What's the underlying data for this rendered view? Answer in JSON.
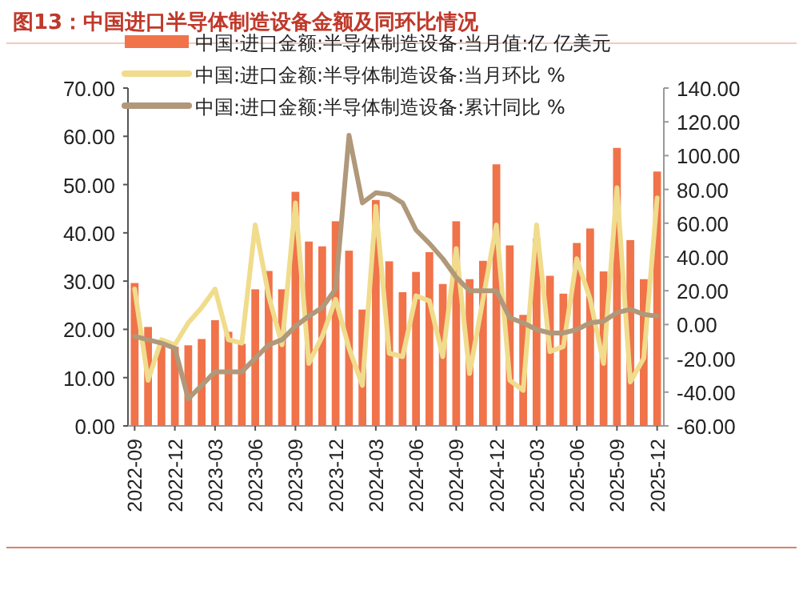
{
  "chart_data": {
    "type": "bar",
    "title": "图13：中国进口半导体制造设备金额及同环比情况",
    "categories": [
      "2022-09",
      null,
      null,
      "2022-12",
      null,
      null,
      "2023-03",
      null,
      null,
      "2023-06",
      null,
      null,
      "2023-09",
      null,
      null,
      "2023-12",
      null,
      null,
      "2024-03",
      null,
      null,
      "2024-06",
      null,
      null,
      "2024-09",
      null,
      null,
      "2024-12",
      null,
      null,
      "2025-03",
      null,
      null,
      "2025-06",
      null,
      null,
      "2025-09",
      null,
      null,
      "2025-12"
    ],
    "series": [
      {
        "name": "中国:进口金额:半导体制造设备:当月值:亿 亿美元",
        "color": "#f0734a",
        "values": [
          29.6,
          20.5,
          17,
          16.4,
          16.7,
          18,
          21.9,
          19.5,
          17,
          28.3,
          32.1,
          28.3,
          48.5,
          38.2,
          37.2,
          42.4,
          36.3,
          24.1,
          46.8,
          34.1,
          27.7,
          31.9,
          36,
          29.4,
          42.4,
          30.4,
          34.2,
          54.2,
          37.4,
          23,
          38.8,
          31.1,
          27.4,
          37.9,
          40.9,
          32,
          57.6,
          38.5,
          30.4,
          52.7
        ]
      },
      {
        "name": "中国:进口金额:半导体制造设备:当月环比 %",
        "type": "line",
        "axis": "y2",
        "color": "#f0dc8c",
        "values": [
          21,
          -33,
          -9,
          -12,
          1,
          10,
          21,
          -9,
          -11,
          59,
          17,
          -12,
          72,
          -23,
          -7,
          15,
          -14,
          -36,
          70,
          -17,
          -19,
          17,
          14,
          -19,
          45,
          -29,
          15,
          59,
          -33,
          -39,
          59,
          -16,
          -13,
          39,
          15,
          -23,
          81,
          -34,
          -20,
          75
        ]
      },
      {
        "name": "中国:进口金额:半导体制造设备:累计同比 %",
        "type": "line",
        "axis": "y2",
        "color": "#b0987a",
        "values": [
          -7,
          -9,
          -11,
          -14,
          -44,
          -36,
          -28,
          -28,
          -28,
          -20,
          -12,
          -9,
          -1,
          5,
          10,
          21,
          112,
          72,
          78,
          77,
          72,
          56,
          48,
          39,
          28,
          20,
          20,
          20,
          4,
          1,
          -3,
          -5,
          -5,
          -3,
          1,
          2,
          7,
          9,
          6,
          5
        ]
      }
    ],
    "ylim": [
      0,
      70
    ],
    "yticks": [
      {
        "value": 0,
        "label": "0.00"
      },
      {
        "value": 10,
        "label": "10.00"
      },
      {
        "value": 20,
        "label": "20.00"
      },
      {
        "value": 30,
        "label": "30.00"
      },
      {
        "value": 40,
        "label": "40.00"
      },
      {
        "value": 50,
        "label": "50.00"
      },
      {
        "value": 60,
        "label": "60.00"
      },
      {
        "value": 70,
        "label": "70.00"
      }
    ],
    "y2lim": [
      -60,
      140
    ],
    "y2ticks": [
      {
        "value": -60,
        "label": "-60.00"
      },
      {
        "value": -40,
        "label": "-40.00"
      },
      {
        "value": -20,
        "label": "-20.00"
      },
      {
        "value": 0,
        "label": "0.00"
      },
      {
        "value": 20,
        "label": "20.00"
      },
      {
        "value": 40,
        "label": "40.00"
      },
      {
        "value": 60,
        "label": "60.00"
      },
      {
        "value": 80,
        "label": "80.00"
      },
      {
        "value": 100,
        "label": "100.00"
      },
      {
        "value": 120,
        "label": "120.00"
      },
      {
        "value": 140,
        "label": "140.00"
      }
    ],
    "legend": "top"
  }
}
